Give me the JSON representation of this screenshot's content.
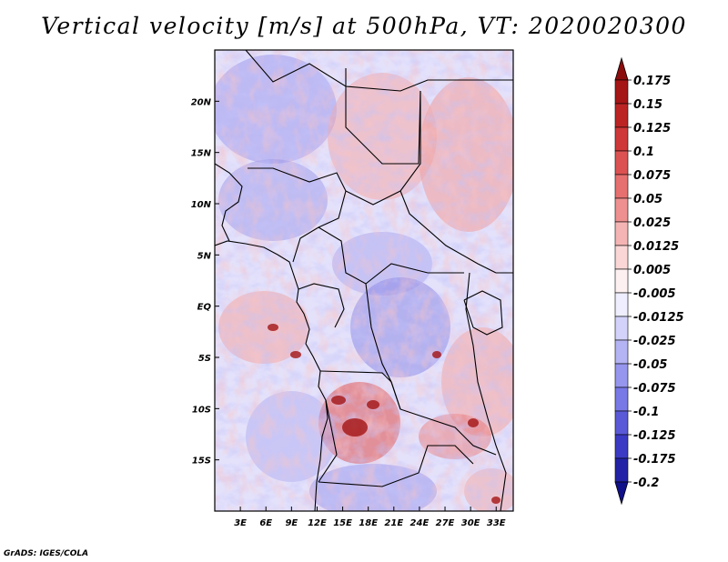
{
  "title": "Vertical velocity [m/s] at 500hPa, VT: 2020020300",
  "credit": "GrADS: IGES/COLA",
  "map": {
    "lon_range": [
      0,
      35
    ],
    "lat_range": [
      -20,
      25
    ],
    "lon_ticks": [
      "3E",
      "6E",
      "9E",
      "12E",
      "15E",
      "18E",
      "21E",
      "24E",
      "27E",
      "30E",
      "33E"
    ],
    "lon_values": [
      3,
      6,
      9,
      12,
      15,
      18,
      21,
      24,
      27,
      30,
      33
    ],
    "lat_ticks": [
      "20N",
      "15N",
      "10N",
      "5N",
      "EQ",
      "5S",
      "10S",
      "15S"
    ],
    "lat_values": [
      20,
      15,
      10,
      5,
      0,
      -5,
      -10,
      -15
    ]
  },
  "colorbar": {
    "labels": [
      "0.175",
      "0.15",
      "0.125",
      "0.1",
      "0.075",
      "0.05",
      "0.025",
      "0.0125",
      "0.005",
      "-0.005",
      "-0.0125",
      "-0.025",
      "-0.05",
      "-0.075",
      "-0.1",
      "-0.125",
      "-0.175",
      "-0.2"
    ],
    "colors": [
      "#8c0c0c",
      "#a51616",
      "#bc2424",
      "#cf3838",
      "#dc5252",
      "#e67070",
      "#ee9090",
      "#f5b4b4",
      "#fad6d6",
      "#fdf0f0",
      "#eeeeff",
      "#d2d2fa",
      "#b4b4f4",
      "#9696ee",
      "#7878e6",
      "#5a5ad8",
      "#3a3ac4",
      "#2222a6",
      "#10108a"
    ]
  }
}
